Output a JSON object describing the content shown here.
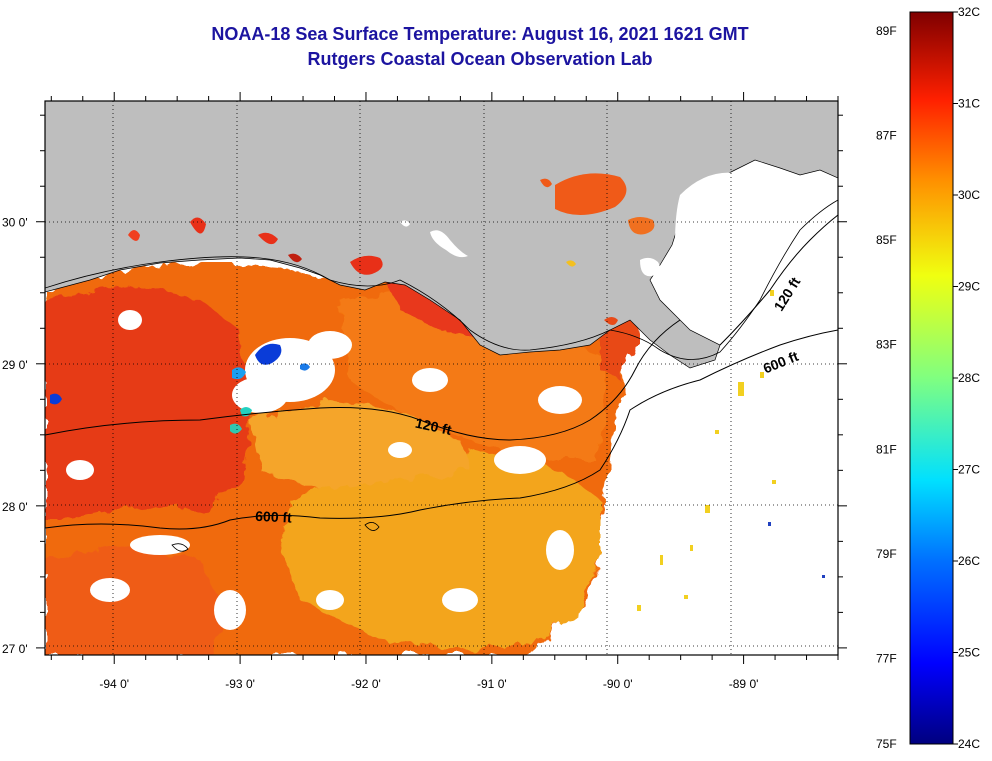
{
  "title": "NOAA-18 Sea Surface Temperature:  August 16, 2021 1621 GMT",
  "subtitle": "Rutgers Coastal Ocean Observation Lab",
  "map": {
    "lon_range": [
      -94.55,
      -88.25
    ],
    "lat_range": [
      26.95,
      30.85
    ],
    "lon_ticks": [
      {
        "value": -94,
        "label": "-94 0'"
      },
      {
        "value": -93,
        "label": "-93 0'"
      },
      {
        "value": -92,
        "label": "-92 0'"
      },
      {
        "value": -91,
        "label": "-91 0'"
      },
      {
        "value": -90,
        "label": "-90 0'"
      },
      {
        "value": -89,
        "label": "-89 0'"
      }
    ],
    "lat_ticks": [
      {
        "value": 30,
        "label": "30 0'"
      },
      {
        "value": 29,
        "label": "29 0'"
      },
      {
        "value": 28,
        "label": "28 0'"
      },
      {
        "value": 27,
        "label": "27 0'"
      }
    ],
    "contours": [
      {
        "depth": "120 ft",
        "label": "120 ft"
      },
      {
        "depth": "600 ft",
        "label": "600 ft"
      },
      {
        "depth": "120 ft",
        "label": "120 ft"
      },
      {
        "depth": "600 ft",
        "label": "600 ft"
      }
    ],
    "colors": {
      "land": "#bebebe",
      "no_data": "#ffffff"
    }
  },
  "colorbar": {
    "fahrenheit_labels": [
      "89F",
      "87F",
      "85F",
      "83F",
      "81F",
      "79F",
      "77F",
      "75F"
    ],
    "celsius_labels": [
      "32C",
      "31C",
      "30C",
      "29C",
      "28C",
      "27C",
      "26C",
      "25C",
      "24C"
    ],
    "range_c": [
      24,
      32
    ]
  }
}
